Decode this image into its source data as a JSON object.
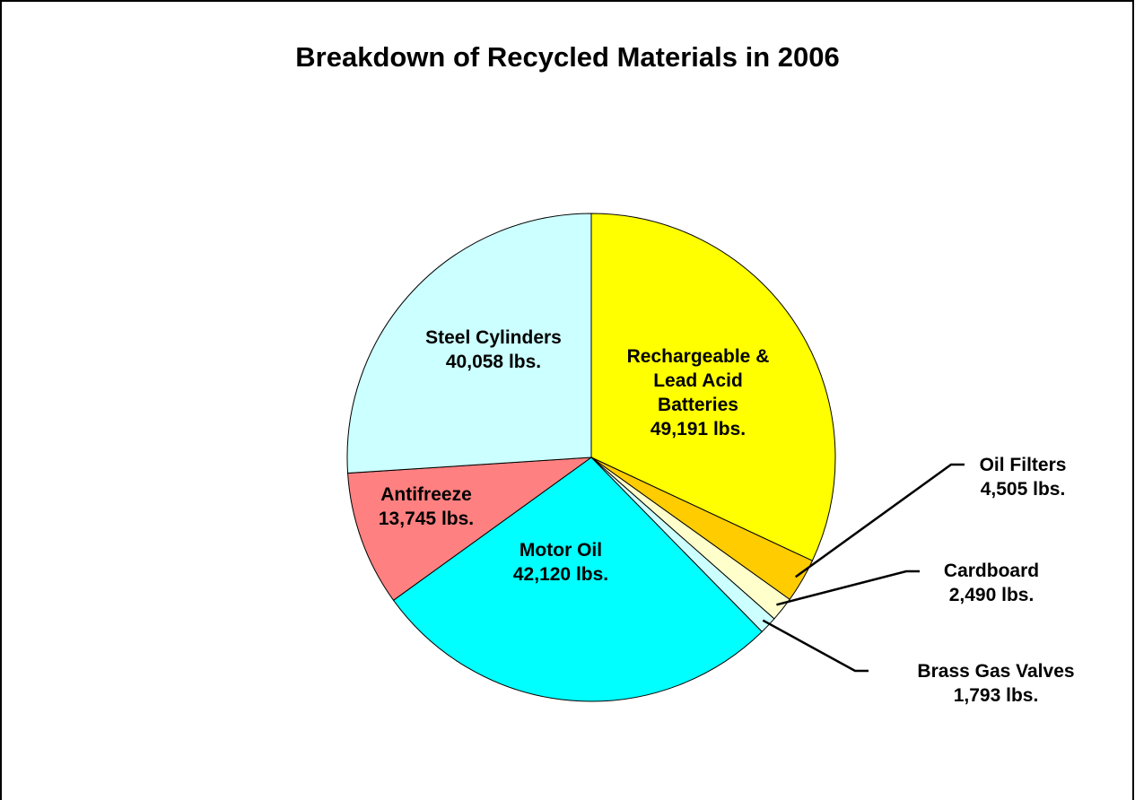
{
  "chart_data": {
    "type": "pie",
    "title": "Breakdown of Recycled Materials in 2006",
    "categories": [
      "Rechargeable & Lead Acid Batteries",
      "Oil Filters",
      "Cardboard",
      "Brass Gas Valves",
      "Motor Oil",
      "Antifreeze",
      "Steel Cylinders"
    ],
    "values": [
      49191,
      4505,
      2490,
      1793,
      42120,
      13745,
      40058
    ],
    "value_labels": [
      "49,191 lbs.",
      "4,505 lbs.",
      "2,490 lbs.",
      "1,793 lbs.",
      "42,120 lbs.",
      "13,745 lbs.",
      "40,058 lbs."
    ],
    "colors": [
      "#ffff00",
      "#ffcc00",
      "#ffffcc",
      "#ccffff",
      "#00ffff",
      "#ff8080",
      "#ccffff"
    ]
  }
}
